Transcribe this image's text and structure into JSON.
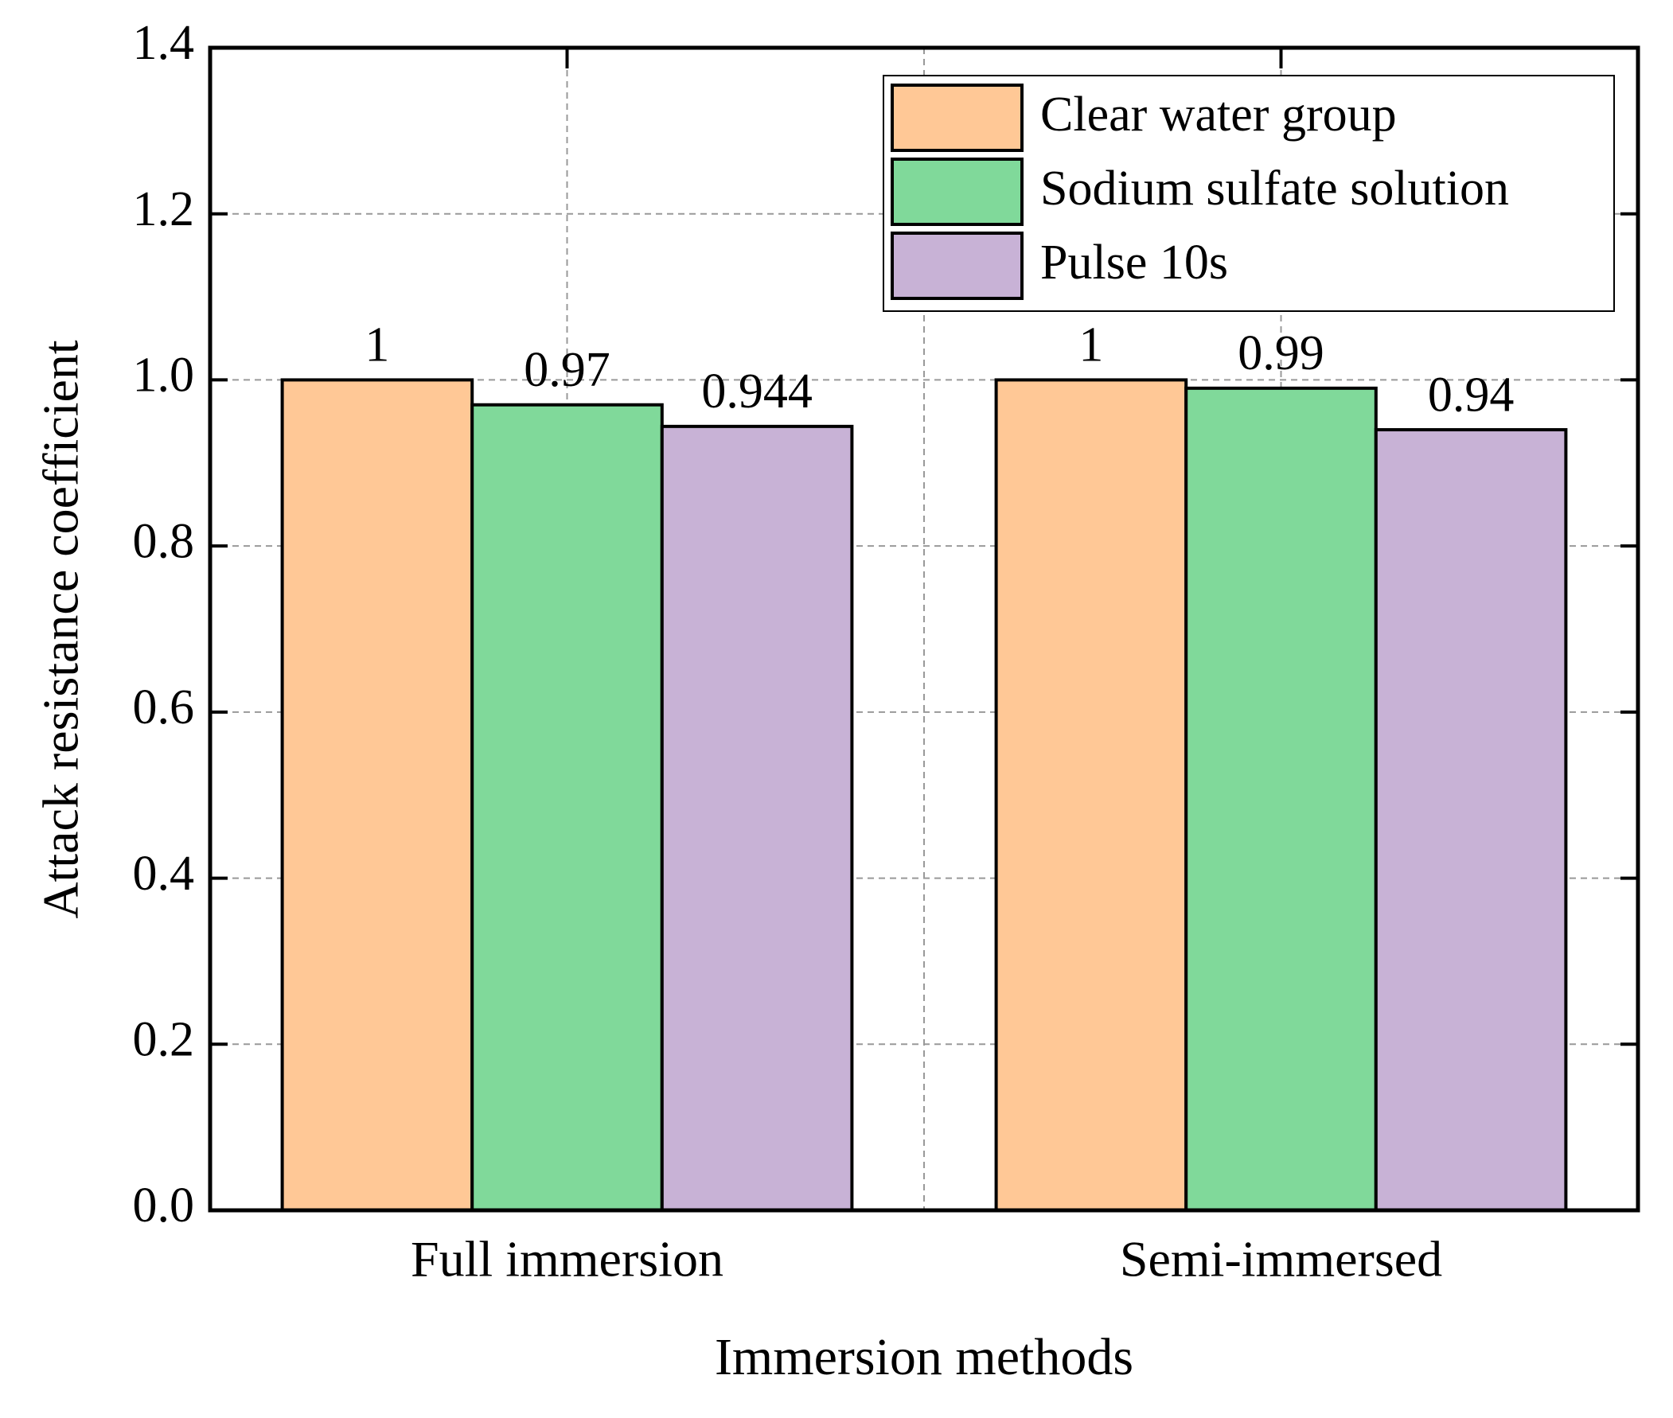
{
  "chart_data": {
    "type": "bar",
    "x_label": "Immersion methods",
    "y_label": "Attack resistance coefficient",
    "categories": [
      "Full immersion",
      "Semi-immersed"
    ],
    "series": [
      {
        "name": "Clear water group",
        "color": "#ffc896",
        "values": [
          1,
          1
        ]
      },
      {
        "name": "Sodium sulfate solution",
        "color": "#80d99a",
        "values": [
          0.97,
          0.99
        ]
      },
      {
        "name": "Pulse 10s",
        "color": "#c8b2d6",
        "values": [
          0.944,
          0.94
        ]
      }
    ],
    "ylim": [
      0,
      1.4
    ],
    "yticks": [
      {
        "value": 0,
        "label": "0.0"
      },
      0.2,
      0.4,
      0.6,
      0.8,
      {
        "value": 1,
        "label": "1.0"
      },
      1.2,
      1.4
    ],
    "grid": true,
    "legend": "upper right"
  }
}
